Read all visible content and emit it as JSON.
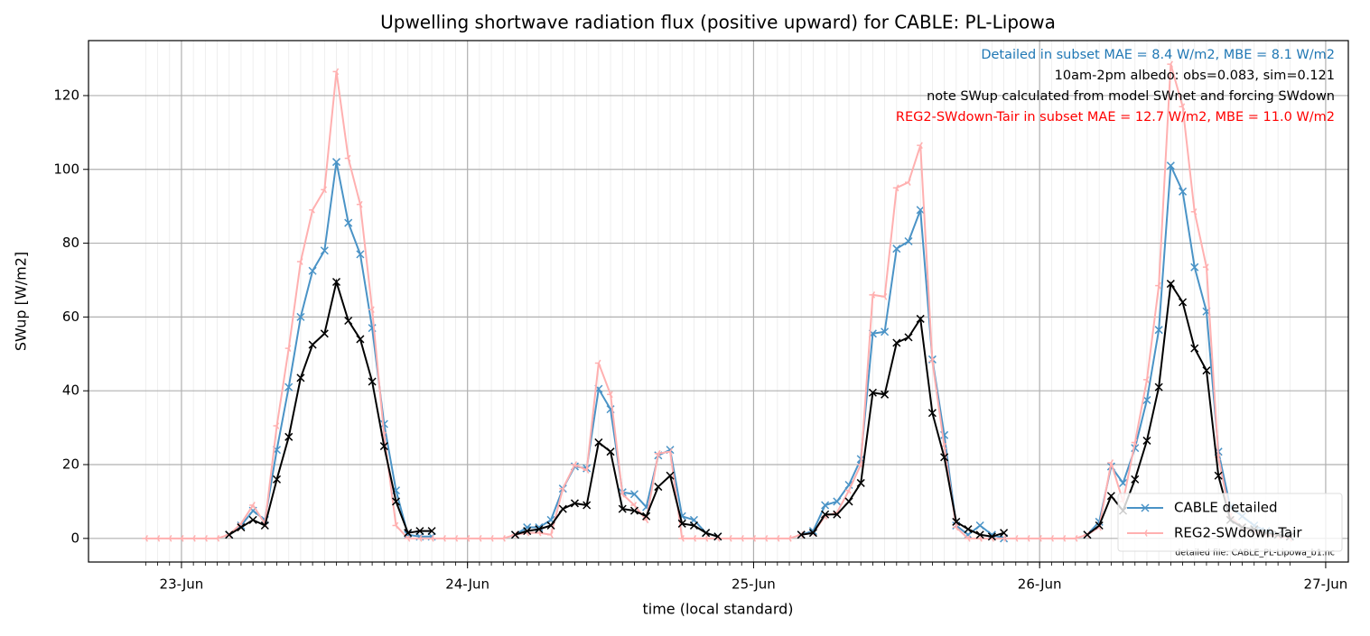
{
  "chart_data": {
    "type": "line",
    "title": "Upwelling shortwave radiation flux (positive upward) for CABLE: PL-Lipowa",
    "xlabel": "time (local standard)",
    "ylabel": "SWup [W/m2]",
    "annotations": [
      {
        "text": "Detailed in subset MAE = 8.4 W/m2, MBE = 8.1 W/m2",
        "color": "#1f77b4"
      },
      {
        "text": "10am-2pm albedo: obs=0.083, sim=0.121",
        "color": "#000000"
      },
      {
        "text": "note SWup calculated from model SWnet and forcing SWdown",
        "color": "#000000"
      },
      {
        "text": "REG2-SWdown-Tair in subset MAE = 12.7 W/m2, MBE = 11.0 W/m2",
        "color": "#ff0000"
      }
    ],
    "footnote": "detailed file: CABLE_PL-Lipowa_b1.nc",
    "x": [
      -3,
      -2,
      -1,
      0,
      1,
      2,
      3,
      4,
      5,
      6,
      7,
      8,
      9,
      10,
      11,
      12,
      13,
      14,
      15,
      16,
      17,
      18,
      19,
      20,
      21,
      22,
      23,
      24,
      25,
      26,
      27,
      28,
      29,
      30,
      31,
      32,
      33,
      34,
      35,
      36,
      37,
      38,
      39,
      40,
      41,
      42,
      43,
      44,
      45,
      46,
      47,
      48,
      49,
      50,
      51,
      52,
      53,
      54,
      55,
      56,
      57,
      58,
      59,
      60,
      61,
      62,
      63,
      64,
      65,
      66,
      67,
      68,
      69,
      70,
      71,
      72,
      73,
      74,
      75,
      76,
      77,
      78,
      79,
      80,
      81,
      82,
      83,
      84,
      85,
      86,
      87,
      88,
      89,
      90,
      91,
      92,
      93
    ],
    "series": [
      {
        "name": "CABLE detailed",
        "color": "#4a93c6",
        "marker": "x",
        "values": [
          null,
          null,
          null,
          null,
          null,
          null,
          null,
          1,
          3.5,
          7.5,
          5,
          24,
          41,
          60,
          72.5,
          78,
          102,
          85.5,
          77,
          57,
          31,
          13,
          1,
          0.5,
          0.5,
          null,
          null,
          null,
          null,
          null,
          null,
          1,
          3,
          3,
          5,
          13.5,
          19.5,
          19,
          40.5,
          35,
          12.5,
          12,
          8.5,
          22.5,
          24,
          6,
          5,
          1.5,
          0.5,
          null,
          null,
          null,
          null,
          null,
          null,
          1,
          2,
          9,
          10,
          14.5,
          21.5,
          55.5,
          56,
          78.5,
          80.5,
          89,
          48.5,
          28,
          3.5,
          1,
          3.5,
          1,
          0,
          null,
          null,
          null,
          null,
          null,
          null,
          1,
          4.5,
          19.5,
          15,
          24.5,
          37.5,
          56.5,
          101,
          94,
          73.5,
          61.5,
          23.5,
          8.5,
          6,
          3.5,
          2,
          1,
          0.5
        ]
      },
      {
        "name": "REG2-SWdown-Tair",
        "color": "#ffb0b0",
        "marker": "tri",
        "values": [
          0,
          0,
          0,
          0,
          0,
          0,
          0,
          1,
          4,
          9,
          4,
          30.5,
          51.5,
          75,
          89,
          94.5,
          126.5,
          103,
          90.5,
          62,
          28,
          3.5,
          0,
          0,
          0,
          0,
          0,
          0,
          0,
          0,
          0,
          1,
          1.5,
          1.5,
          1,
          13.5,
          20,
          18.5,
          47.5,
          39,
          12,
          9,
          5,
          23,
          23.5,
          0,
          0,
          0,
          0,
          0,
          0,
          0,
          0,
          0,
          0,
          1,
          1.5,
          6,
          7,
          13,
          20,
          66,
          65.5,
          95,
          96.5,
          106.5,
          48,
          25,
          3,
          0,
          0,
          0,
          0,
          0,
          0,
          0,
          0,
          0,
          0,
          1,
          3,
          20.5,
          10,
          26,
          43,
          68.5,
          128.5,
          117,
          88.5,
          73.5,
          22,
          6,
          3,
          2,
          1,
          0.5,
          0
        ]
      },
      {
        "color": "#000000",
        "marker": "x",
        "values": [
          null,
          null,
          null,
          null,
          null,
          null,
          null,
          1,
          3,
          5,
          3.5,
          16,
          27.5,
          43.5,
          52.5,
          55.5,
          69.5,
          59,
          54,
          42.5,
          25,
          10,
          1.5,
          2,
          2,
          null,
          null,
          null,
          null,
          null,
          null,
          1,
          2,
          2.5,
          3.5,
          8,
          9.5,
          9,
          26,
          23.5,
          8,
          7.5,
          6,
          14,
          17,
          4,
          3.5,
          1.5,
          0.5,
          null,
          null,
          null,
          null,
          null,
          null,
          1,
          1.5,
          6.5,
          6.5,
          10,
          15,
          39.5,
          39,
          53,
          54.5,
          59.5,
          34,
          22,
          4.5,
          2.5,
          1,
          0.5,
          1.5,
          null,
          null,
          null,
          null,
          null,
          null,
          1,
          3.5,
          11.5,
          7.5,
          16,
          26.5,
          41,
          69,
          64,
          51.5,
          45.5,
          17,
          5,
          3,
          2.5,
          1.5,
          1,
          0.5
        ]
      }
    ],
    "xlim": [
      -7.8,
      97.9
    ],
    "xticks": [
      {
        "value": 0,
        "label": "23-Jun"
      },
      {
        "value": 24,
        "label": "24-Jun"
      },
      {
        "value": 48,
        "label": "25-Jun"
      },
      {
        "value": 72,
        "label": "26-Jun"
      },
      {
        "value": 96,
        "label": "27-Jun"
      }
    ],
    "ylim": [
      -6.4,
      134.9
    ],
    "yticks": [
      0,
      20,
      40,
      60,
      80,
      100,
      120
    ],
    "grid": true,
    "legend": "lower right"
  }
}
